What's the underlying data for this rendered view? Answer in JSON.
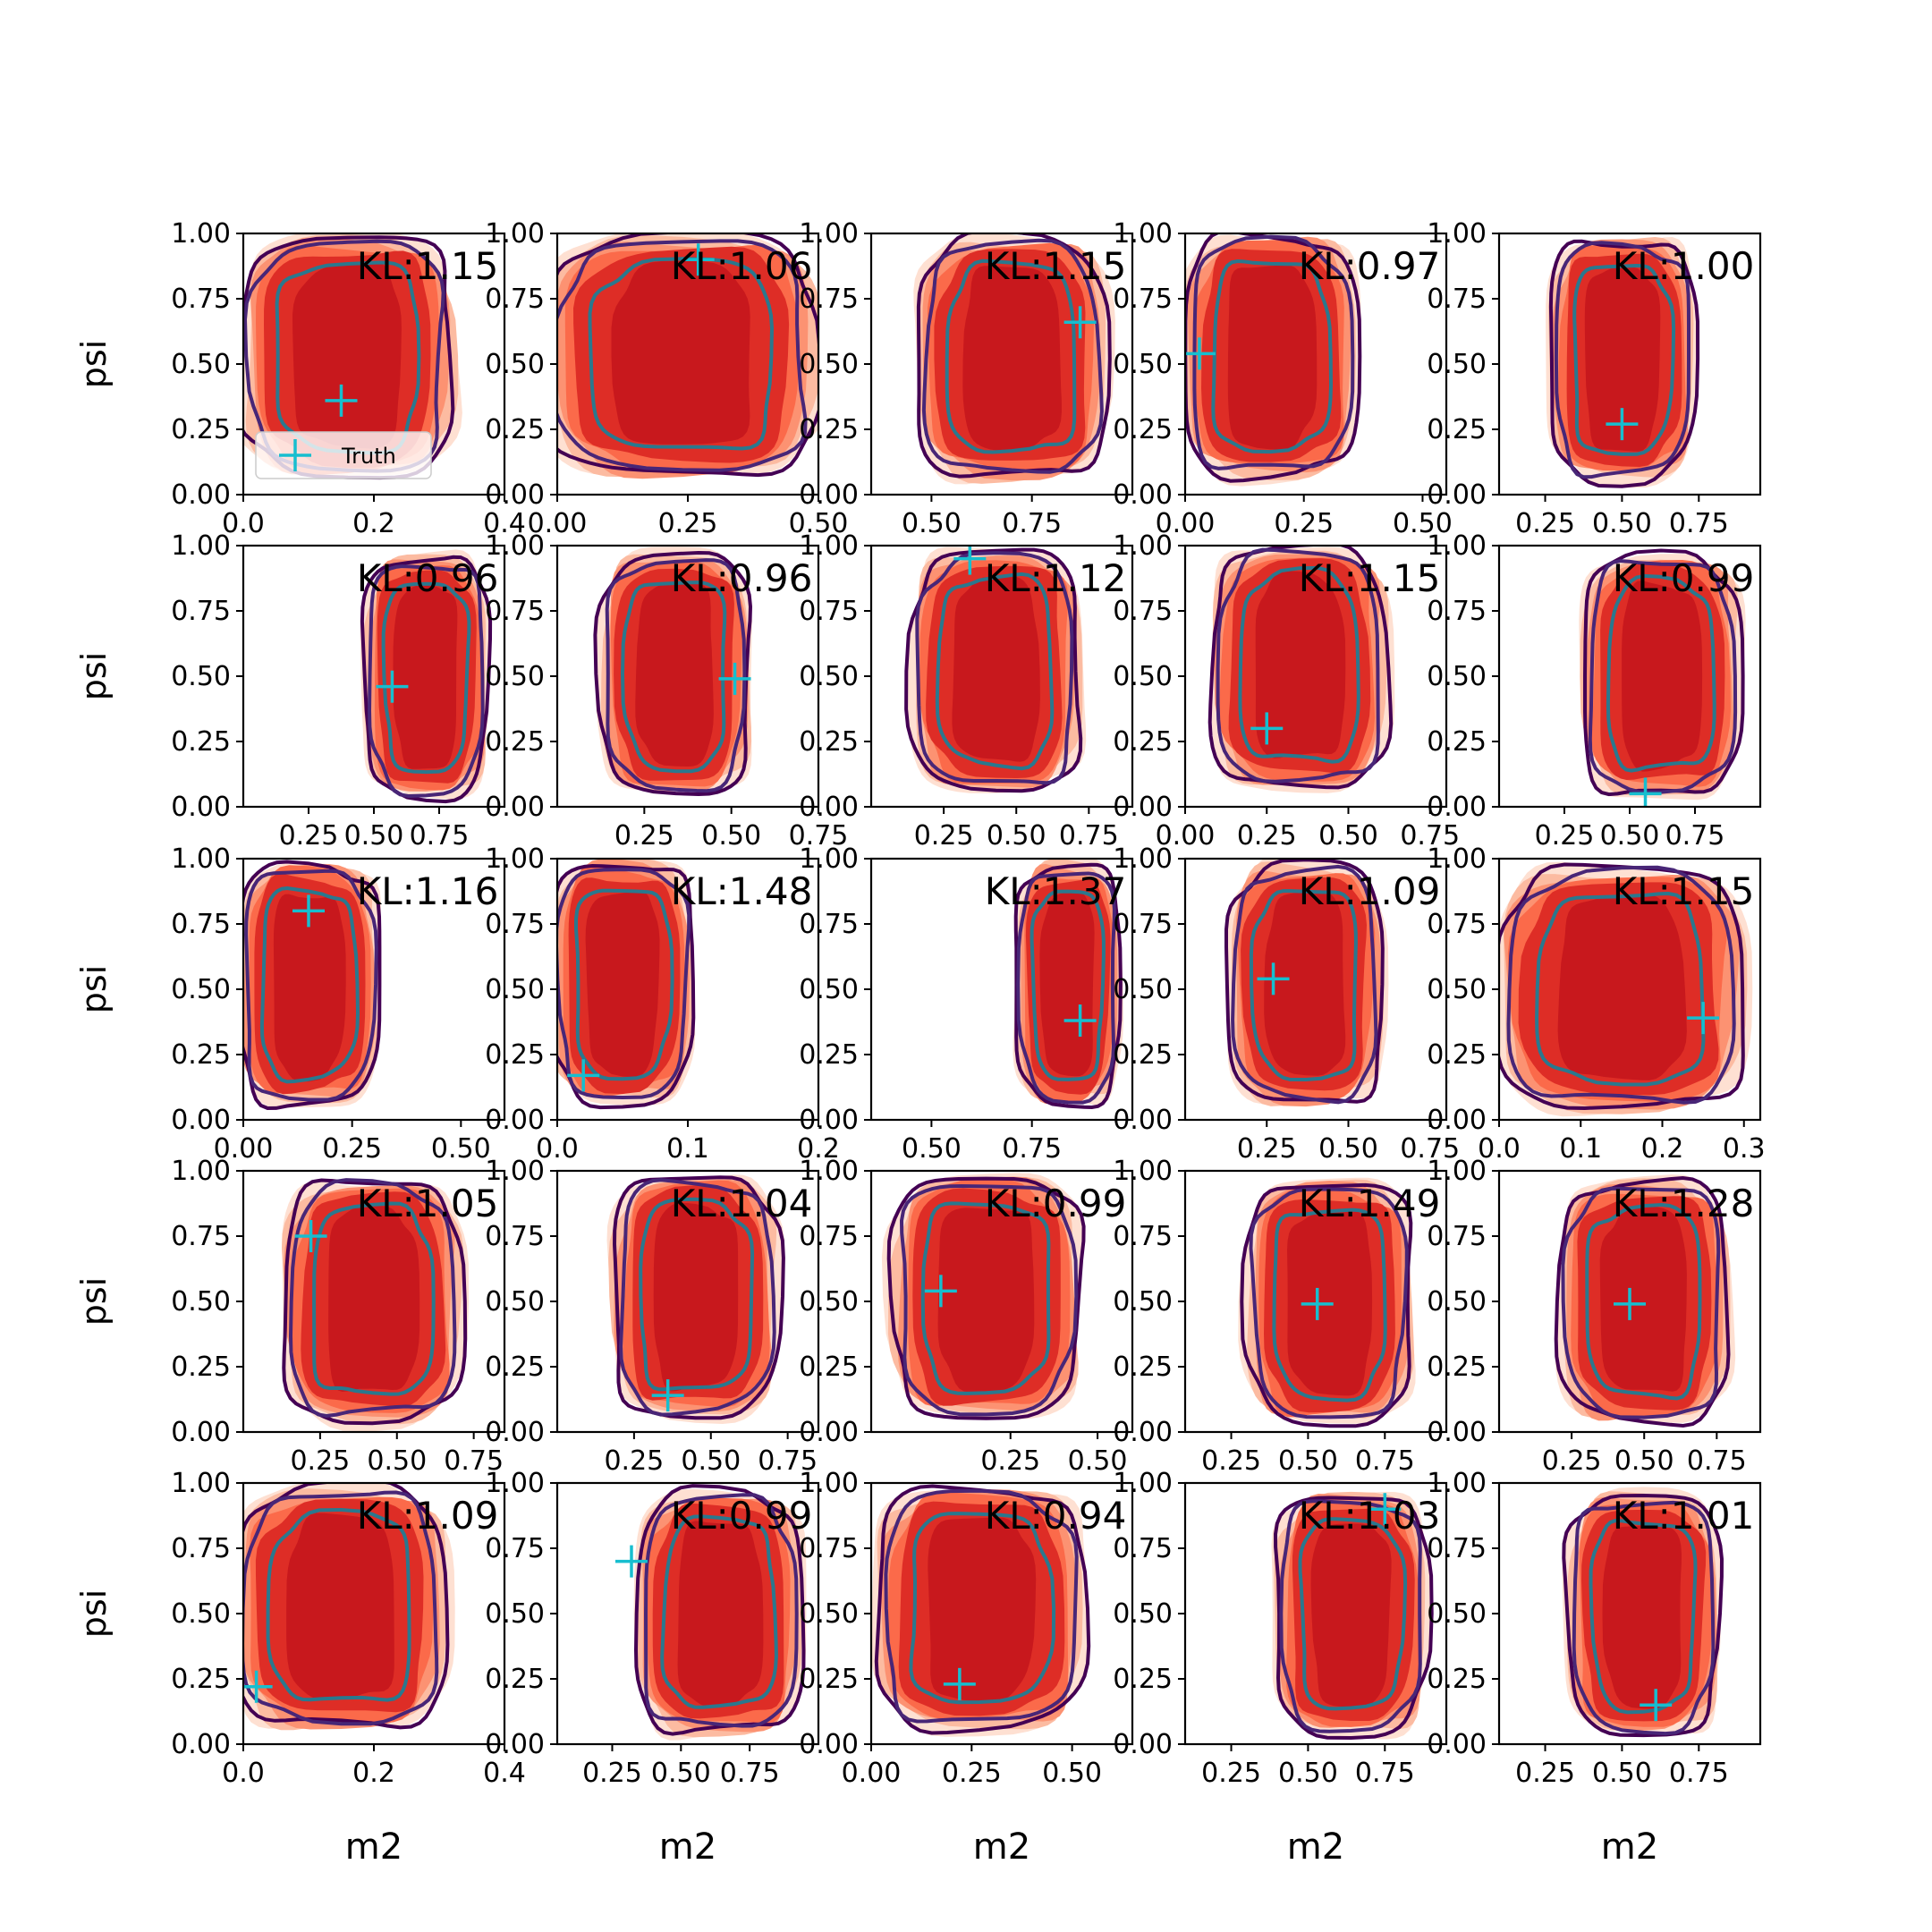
{
  "figure": {
    "xlabel": "m2",
    "ylabel": "psi",
    "legend_label": "Truth",
    "legend_placement": "lower-left of first panel",
    "colors": {
      "fill_levels": [
        "#fee0d2",
        "#fcbba1",
        "#fc9272",
        "#fb6a4a",
        "#de2d26",
        "#c8181d"
      ],
      "contour_outer": "#440154",
      "contour_mid": "#482677",
      "contour_inner": "#2a788e",
      "truth_marker": "#17becf",
      "axes": "#000000"
    }
  },
  "chart_data": [
    {
      "type": "contour",
      "row": 1,
      "col": 1,
      "title": "KL:1.15",
      "xlim": [
        0.0,
        0.4
      ],
      "ylim": [
        0,
        1
      ],
      "xticks": [
        "0.0",
        "0.2",
        "0.4"
      ],
      "yticks": [
        "0.00",
        "0.25",
        "0.50",
        "0.75",
        "1.00"
      ],
      "truth": {
        "x": 0.15,
        "y": 0.36
      },
      "density": {
        "cx": 0.16,
        "cy": 0.53,
        "rx": 0.15,
        "ry": 0.45
      }
    },
    {
      "type": "contour",
      "row": 1,
      "col": 2,
      "title": "KL:1.06",
      "xlim": [
        0.0,
        0.5
      ],
      "ylim": [
        0,
        1
      ],
      "xticks": [
        "0.00",
        "0.25",
        "0.50"
      ],
      "yticks": [
        "0.00",
        "0.25",
        "0.50",
        "0.75",
        "1.00"
      ],
      "truth": {
        "x": 0.27,
        "y": 0.9
      },
      "density": {
        "cx": 0.24,
        "cy": 0.53,
        "rx": 0.24,
        "ry": 0.45
      }
    },
    {
      "type": "contour",
      "row": 1,
      "col": 3,
      "title": "KL:1.15",
      "xlim": [
        0.35,
        1.0
      ],
      "ylim": [
        0,
        1
      ],
      "xticks": [
        "0.50",
        "0.75"
      ],
      "yticks": [
        "0.00",
        "0.25",
        "0.50",
        "0.75",
        "1.00"
      ],
      "truth": {
        "x": 0.87,
        "y": 0.66
      },
      "density": {
        "cx": 0.7,
        "cy": 0.52,
        "rx": 0.22,
        "ry": 0.45
      }
    },
    {
      "type": "contour",
      "row": 1,
      "col": 4,
      "title": "KL:0.97",
      "xlim": [
        0.0,
        0.55
      ],
      "ylim": [
        0,
        1
      ],
      "xticks": [
        "0.00",
        "0.25",
        "0.50"
      ],
      "yticks": [
        "0.00",
        "0.25",
        "0.50",
        "0.75",
        "1.00"
      ],
      "truth": {
        "x": 0.03,
        "y": 0.54
      },
      "density": {
        "cx": 0.18,
        "cy": 0.53,
        "rx": 0.17,
        "ry": 0.45
      }
    },
    {
      "type": "contour",
      "row": 1,
      "col": 5,
      "title": "KL:1.00",
      "xlim": [
        0.1,
        0.95
      ],
      "ylim": [
        0,
        1
      ],
      "xticks": [
        "0.25",
        "0.50",
        "0.75"
      ],
      "yticks": [
        "0.00",
        "0.25",
        "0.50",
        "0.75",
        "1.00"
      ],
      "truth": {
        "x": 0.5,
        "y": 0.27
      },
      "density": {
        "cx": 0.5,
        "cy": 0.52,
        "rx": 0.22,
        "ry": 0.45
      }
    },
    {
      "type": "contour",
      "row": 2,
      "col": 1,
      "title": "KL:0.96",
      "xlim": [
        0.0,
        1.0
      ],
      "ylim": [
        0,
        1
      ],
      "xticks": [
        "0.25",
        "0.50",
        "0.75"
      ],
      "yticks": [
        "0.00",
        "0.25",
        "0.50",
        "0.75",
        "1.00"
      ],
      "truth": {
        "x": 0.57,
        "y": 0.46
      },
      "density": {
        "cx": 0.7,
        "cy": 0.5,
        "rx": 0.22,
        "ry": 0.45
      }
    },
    {
      "type": "contour",
      "row": 2,
      "col": 2,
      "title": "KL:0.96",
      "xlim": [
        0.0,
        0.75
      ],
      "ylim": [
        0,
        1
      ],
      "xticks": [
        "0.25",
        "0.50",
        "0.75"
      ],
      "yticks": [
        "0.00",
        "0.25",
        "0.50",
        "0.75",
        "1.00"
      ],
      "truth": {
        "x": 0.51,
        "y": 0.49
      },
      "density": {
        "cx": 0.34,
        "cy": 0.51,
        "rx": 0.2,
        "ry": 0.45
      }
    },
    {
      "type": "contour",
      "row": 2,
      "col": 3,
      "title": "KL:1.12",
      "xlim": [
        0.0,
        0.9
      ],
      "ylim": [
        0,
        1
      ],
      "xticks": [
        "0.25",
        "0.50",
        "0.75"
      ],
      "yticks": [
        "0.00",
        "0.25",
        "0.50",
        "0.75",
        "1.00"
      ],
      "truth": {
        "x": 0.34,
        "y": 0.95
      },
      "density": {
        "cx": 0.43,
        "cy": 0.52,
        "rx": 0.27,
        "ry": 0.45
      }
    },
    {
      "type": "contour",
      "row": 2,
      "col": 4,
      "title": "KL:1.15",
      "xlim": [
        0.0,
        0.8
      ],
      "ylim": [
        0,
        1
      ],
      "xticks": [
        "0.00",
        "0.25",
        "0.50",
        "0.75"
      ],
      "yticks": [
        "0.00",
        "0.25",
        "0.50",
        "0.75",
        "1.00"
      ],
      "truth": {
        "x": 0.25,
        "y": 0.3
      },
      "density": {
        "cx": 0.35,
        "cy": 0.53,
        "rx": 0.25,
        "ry": 0.45
      }
    },
    {
      "type": "contour",
      "row": 2,
      "col": 5,
      "title": "KL:0.99",
      "xlim": [
        0.0,
        1.0
      ],
      "ylim": [
        0,
        1
      ],
      "xticks": [
        "0.25",
        "0.50",
        "0.75"
      ],
      "yticks": [
        "0.00",
        "0.25",
        "0.50",
        "0.75",
        "1.00"
      ],
      "truth": {
        "x": 0.56,
        "y": 0.05
      },
      "density": {
        "cx": 0.62,
        "cy": 0.5,
        "rx": 0.28,
        "ry": 0.45
      }
    },
    {
      "type": "contour",
      "row": 3,
      "col": 1,
      "title": "KL:1.16",
      "xlim": [
        0.0,
        0.6
      ],
      "ylim": [
        0,
        1
      ],
      "xticks": [
        "0.00",
        "0.25",
        "0.50"
      ],
      "yticks": [
        "0.00",
        "0.25",
        "0.50",
        "0.75",
        "1.00"
      ],
      "truth": {
        "x": 0.15,
        "y": 0.8
      },
      "density": {
        "cx": 0.15,
        "cy": 0.52,
        "rx": 0.15,
        "ry": 0.45
      }
    },
    {
      "type": "contour",
      "row": 3,
      "col": 2,
      "title": "KL:1.48",
      "xlim": [
        0.0,
        0.2
      ],
      "ylim": [
        0,
        1
      ],
      "xticks": [
        "0.0",
        "0.1",
        "0.2"
      ],
      "yticks": [
        "0.00",
        "0.25",
        "0.50",
        "0.75",
        "1.00"
      ],
      "truth": {
        "x": 0.02,
        "y": 0.17
      },
      "density": {
        "cx": 0.05,
        "cy": 0.53,
        "rx": 0.05,
        "ry": 0.45
      }
    },
    {
      "type": "contour",
      "row": 3,
      "col": 3,
      "title": "KL:1.37",
      "xlim": [
        0.35,
        1.0
      ],
      "ylim": [
        0,
        1
      ],
      "xticks": [
        "0.50",
        "0.75"
      ],
      "yticks": [
        "0.00",
        "0.25",
        "0.50",
        "0.75",
        "1.00"
      ],
      "truth": {
        "x": 0.87,
        "y": 0.38
      },
      "density": {
        "cx": 0.84,
        "cy": 0.52,
        "rx": 0.12,
        "ry": 0.45
      }
    },
    {
      "type": "contour",
      "row": 3,
      "col": 4,
      "title": "KL:1.09",
      "xlim": [
        0.0,
        0.8
      ],
      "ylim": [
        0,
        1
      ],
      "xticks": [
        "0.25",
        "0.50",
        "0.75"
      ],
      "yticks": [
        "0.00",
        "0.25",
        "0.50",
        "0.75",
        "1.00"
      ],
      "truth": {
        "x": 0.27,
        "y": 0.54
      },
      "density": {
        "cx": 0.37,
        "cy": 0.52,
        "rx": 0.22,
        "ry": 0.45
      }
    },
    {
      "type": "contour",
      "row": 3,
      "col": 5,
      "title": "KL:1.15",
      "xlim": [
        0.0,
        0.32
      ],
      "ylim": [
        0,
        1
      ],
      "xticks": [
        "0.0",
        "0.1",
        "0.2",
        "0.3"
      ],
      "yticks": [
        "0.00",
        "0.25",
        "0.50",
        "0.75",
        "1.00"
      ],
      "truth": {
        "x": 0.25,
        "y": 0.39
      },
      "density": {
        "cx": 0.15,
        "cy": 0.5,
        "rx": 0.14,
        "ry": 0.45
      }
    },
    {
      "type": "contour",
      "row": 4,
      "col": 1,
      "title": "KL:1.05",
      "xlim": [
        0.0,
        0.85
      ],
      "ylim": [
        0,
        1
      ],
      "xticks": [
        "0.25",
        "0.50",
        "0.75"
      ],
      "yticks": [
        "0.00",
        "0.25",
        "0.50",
        "0.75",
        "1.00"
      ],
      "truth": {
        "x": 0.22,
        "y": 0.75
      },
      "density": {
        "cx": 0.42,
        "cy": 0.5,
        "rx": 0.27,
        "ry": 0.45
      }
    },
    {
      "type": "contour",
      "row": 4,
      "col": 2,
      "title": "KL:1.04",
      "xlim": [
        0.0,
        0.85
      ],
      "ylim": [
        0,
        1
      ],
      "xticks": [
        "0.25",
        "0.50",
        "0.75"
      ],
      "yticks": [
        "0.00",
        "0.25",
        "0.50",
        "0.75",
        "1.00"
      ],
      "truth": {
        "x": 0.36,
        "y": 0.14
      },
      "density": {
        "cx": 0.45,
        "cy": 0.52,
        "rx": 0.25,
        "ry": 0.45
      }
    },
    {
      "type": "contour",
      "row": 4,
      "col": 3,
      "title": "KL:0.99",
      "xlim": [
        -0.15,
        0.6
      ],
      "ylim": [
        0,
        1
      ],
      "xticks": [
        "0.25",
        "0.50"
      ],
      "yticks": [
        "0.00",
        "0.25",
        "0.50",
        "0.75",
        "1.00"
      ],
      "truth": {
        "x": 0.05,
        "y": 0.54
      },
      "density": {
        "cx": 0.18,
        "cy": 0.52,
        "rx": 0.25,
        "ry": 0.45
      }
    },
    {
      "type": "contour",
      "row": 4,
      "col": 4,
      "title": "KL:1.49",
      "xlim": [
        0.1,
        0.95
      ],
      "ylim": [
        0,
        1
      ],
      "xticks": [
        "0.25",
        "0.50",
        "0.75"
      ],
      "yticks": [
        "0.00",
        "0.25",
        "0.50",
        "0.75",
        "1.00"
      ],
      "truth": {
        "x": 0.53,
        "y": 0.49
      },
      "density": {
        "cx": 0.57,
        "cy": 0.5,
        "rx": 0.25,
        "ry": 0.45
      }
    },
    {
      "type": "contour",
      "row": 4,
      "col": 5,
      "title": "KL:1.28",
      "xlim": [
        0.0,
        0.9
      ],
      "ylim": [
        0,
        1
      ],
      "xticks": [
        "0.25",
        "0.50",
        "0.75"
      ],
      "yticks": [
        "0.00",
        "0.25",
        "0.50",
        "0.75",
        "1.00"
      ],
      "truth": {
        "x": 0.45,
        "y": 0.49
      },
      "density": {
        "cx": 0.5,
        "cy": 0.5,
        "rx": 0.27,
        "ry": 0.45
      }
    },
    {
      "type": "contour",
      "row": 5,
      "col": 1,
      "title": "KL:1.09",
      "xlim": [
        0.0,
        0.4
      ],
      "ylim": [
        0,
        1
      ],
      "xticks": [
        "0.0",
        "0.2",
        "0.4"
      ],
      "yticks": [
        "0.00",
        "0.25",
        "0.50",
        "0.75",
        "1.00"
      ],
      "truth": {
        "x": 0.02,
        "y": 0.22
      },
      "density": {
        "cx": 0.15,
        "cy": 0.52,
        "rx": 0.15,
        "ry": 0.45
      }
    },
    {
      "type": "contour",
      "row": 5,
      "col": 2,
      "title": "KL:0.99",
      "xlim": [
        0.05,
        1.0
      ],
      "ylim": [
        0,
        1
      ],
      "xticks": [
        "0.25",
        "0.50",
        "0.75"
      ],
      "yticks": [
        "0.00",
        "0.25",
        "0.50",
        "0.75",
        "1.00"
      ],
      "truth": {
        "x": 0.32,
        "y": 0.7
      },
      "density": {
        "cx": 0.64,
        "cy": 0.5,
        "rx": 0.28,
        "ry": 0.45
      }
    },
    {
      "type": "contour",
      "row": 5,
      "col": 3,
      "title": "KL:0.94",
      "xlim": [
        0.0,
        0.65
      ],
      "ylim": [
        0,
        1
      ],
      "xticks": [
        "0.00",
        "0.25",
        "0.50"
      ],
      "yticks": [
        "0.00",
        "0.25",
        "0.50",
        "0.75",
        "1.00"
      ],
      "truth": {
        "x": 0.22,
        "y": 0.23
      },
      "density": {
        "cx": 0.27,
        "cy": 0.52,
        "rx": 0.24,
        "ry": 0.45
      }
    },
    {
      "type": "contour",
      "row": 5,
      "col": 4,
      "title": "KL:1.03",
      "xlim": [
        0.1,
        0.95
      ],
      "ylim": [
        0,
        1
      ],
      "xticks": [
        "0.25",
        "0.50",
        "0.75"
      ],
      "yticks": [
        "0.00",
        "0.25",
        "0.50",
        "0.75",
        "1.00"
      ],
      "truth": {
        "x": 0.75,
        "y": 0.9
      },
      "density": {
        "cx": 0.64,
        "cy": 0.5,
        "rx": 0.23,
        "ry": 0.45
      }
    },
    {
      "type": "contour",
      "row": 5,
      "col": 5,
      "title": "KL:1.01",
      "xlim": [
        0.1,
        0.95
      ],
      "ylim": [
        0,
        1
      ],
      "xticks": [
        "0.25",
        "0.50",
        "0.75"
      ],
      "yticks": [
        "0.00",
        "0.25",
        "0.50",
        "0.75",
        "1.00"
      ],
      "truth": {
        "x": 0.61,
        "y": 0.15
      },
      "density": {
        "cx": 0.57,
        "cy": 0.5,
        "rx": 0.23,
        "ry": 0.45
      }
    }
  ]
}
